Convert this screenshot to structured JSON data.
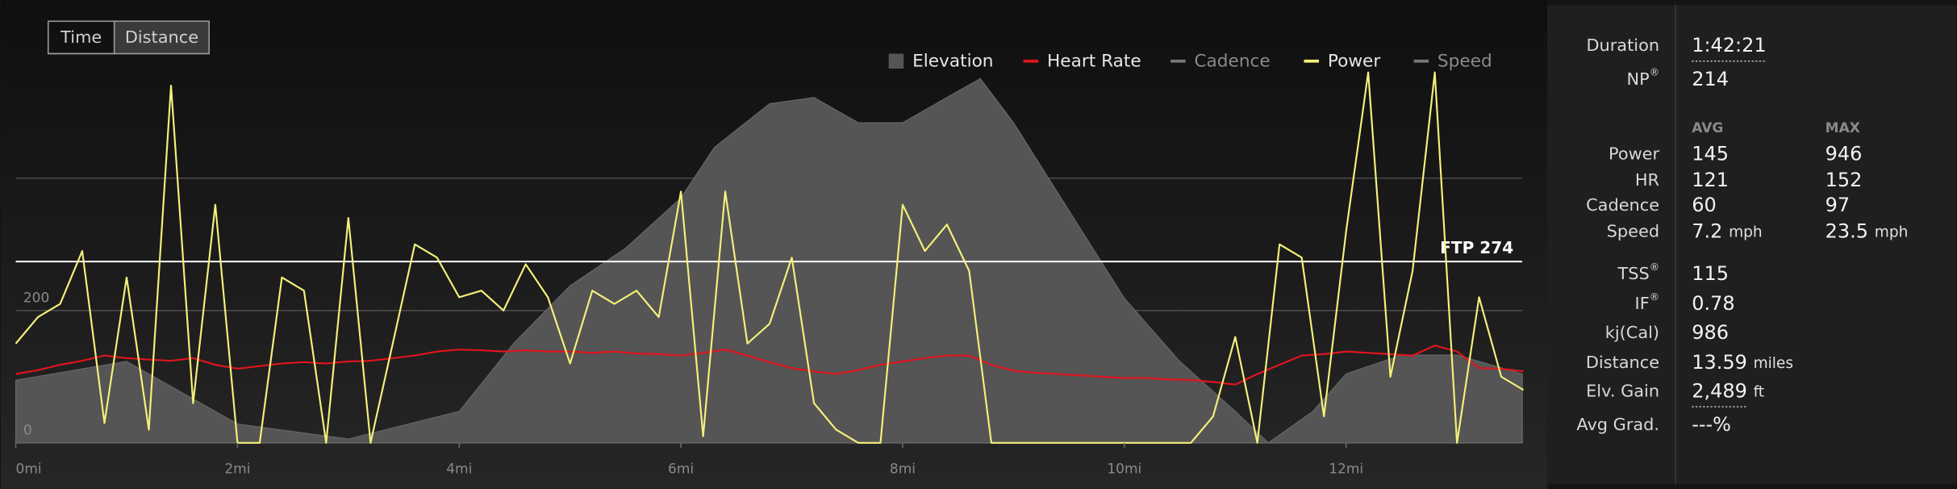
{
  "toggle": {
    "options": [
      "Time",
      "Distance"
    ],
    "selected_index": 1
  },
  "chart_data": {
    "type": "line",
    "x": [
      0,
      0.2,
      0.4,
      0.6,
      0.8,
      1.0,
      1.2,
      1.4,
      1.6,
      1.8,
      2.0,
      2.2,
      2.4,
      2.6,
      2.8,
      3.0,
      3.2,
      3.4,
      3.6,
      3.8,
      4.0,
      4.2,
      4.4,
      4.6,
      4.8,
      5.0,
      5.2,
      5.4,
      5.6,
      5.8,
      6.0,
      6.2,
      6.4,
      6.6,
      6.8,
      7.0,
      7.2,
      7.4,
      7.6,
      7.8,
      8.0,
      8.2,
      8.4,
      8.6,
      8.8,
      9.0,
      9.2,
      9.4,
      9.6,
      9.8,
      10.0,
      10.2,
      10.4,
      10.6,
      10.8,
      11.0,
      11.2,
      11.4,
      11.6,
      11.8,
      12.0,
      12.2,
      12.4,
      12.6,
      12.8,
      13.0,
      13.2,
      13.4,
      13.6
    ],
    "series": [
      {
        "name": "Elevation",
        "color": "#555555",
        "marker": "square",
        "style": "area",
        "axis": "y2",
        "active": true,
        "x": [
          0,
          1,
          2,
          3,
          4,
          4.5,
          5,
          5.5,
          6,
          6.3,
          6.8,
          7.2,
          7.6,
          8,
          8.3,
          8.7,
          9,
          9.5,
          10,
          10.5,
          11,
          11.3,
          11.7,
          12,
          12.5,
          13,
          13.59
        ],
        "values": [
          169,
          220,
          51,
          10,
          85,
          271,
          424,
          525,
          661,
          797,
          915,
          932,
          864,
          864,
          915,
          983,
          864,
          627,
          390,
          220,
          85,
          0,
          85,
          186,
          237,
          237,
          186
        ]
      },
      {
        "name": "Heart Rate",
        "color": "#e0141e",
        "marker": "line",
        "active": true,
        "values": [
          104,
          110,
          118,
          124,
          132,
          128,
          126,
          124,
          128,
          118,
          112,
          116,
          120,
          122,
          120,
          123,
          124,
          128,
          132,
          138,
          141,
          140,
          138,
          140,
          138,
          138,
          136,
          138,
          135,
          134,
          132,
          136,
          141,
          132,
          122,
          113,
          108,
          104,
          110,
          118,
          123,
          128,
          132,
          132,
          118,
          109,
          106,
          104,
          102,
          100,
          98,
          98,
          96,
          95,
          92,
          88,
          104,
          118,
          132,
          134,
          138,
          136,
          134,
          132,
          147,
          138,
          113,
          112,
          108
        ]
      },
      {
        "name": "Cadence",
        "color": "#777777",
        "marker": "line",
        "active": false
      },
      {
        "name": "Power",
        "color": "#f5f07a",
        "marker": "line",
        "active": true,
        "values": [
          150,
          190,
          210,
          290,
          30,
          250,
          20,
          540,
          60,
          360,
          0,
          0,
          250,
          230,
          0,
          340,
          0,
          150,
          300,
          280,
          220,
          230,
          200,
          270,
          220,
          120,
          230,
          210,
          230,
          190,
          380,
          10,
          380,
          150,
          180,
          280,
          60,
          20,
          0,
          0,
          360,
          290,
          330,
          260,
          0,
          0,
          0,
          0,
          0,
          0,
          0,
          0,
          0,
          0,
          40,
          160,
          0,
          300,
          280,
          40,
          320,
          560,
          100,
          260,
          560,
          0,
          220,
          100,
          80
        ]
      },
      {
        "name": "Speed",
        "color": "#777777",
        "marker": "line",
        "active": false
      }
    ],
    "xlim": [
      0,
      13.6
    ],
    "xticks": [
      {
        "value": 0,
        "label": "0mi"
      },
      {
        "value": 2,
        "label": "2mi"
      },
      {
        "value": 4,
        "label": "4mi"
      },
      {
        "value": 6,
        "label": "6mi"
      },
      {
        "value": 8,
        "label": "8mi"
      },
      {
        "value": 10,
        "label": "10mi"
      },
      {
        "value": 12,
        "label": "12mi"
      }
    ],
    "ylim": [
      0,
      560
    ],
    "yticks": [
      0,
      200,
      {
        "value": 400,
        "label": null
      }
    ],
    "y2lim": [
      0,
      1000
    ],
    "grid": true,
    "ftp": {
      "value": 274,
      "label": "FTP 274"
    }
  },
  "summary": [
    {
      "label": "Duration",
      "value": "1:42:21",
      "underline": true
    },
    {
      "label": "NP",
      "sup": "®",
      "value": "214"
    }
  ],
  "stats": {
    "headers": [
      "AVG",
      "MAX"
    ],
    "rows": [
      {
        "label": "Power",
        "avg": "145",
        "max": "946"
      },
      {
        "label": "HR",
        "avg": "121",
        "max": "152"
      },
      {
        "label": "Cadence",
        "avg": "60",
        "max": "97"
      },
      {
        "label": "Speed",
        "avg": "7.2",
        "max": "23.5",
        "unit": "mph"
      }
    ]
  },
  "metrics": [
    {
      "label": "TSS",
      "sup": "®",
      "value": "115"
    },
    {
      "label": "IF",
      "sup": "®",
      "value": "0.78"
    },
    {
      "label": "kj(Cal)",
      "value": "986"
    },
    {
      "label": "Distance",
      "value": "13.59",
      "unit": "miles"
    },
    {
      "label": "Elv. Gain",
      "value": "2,489",
      "unit": "ft",
      "underline": true
    },
    {
      "label": "Avg Grad.",
      "value": "---%"
    }
  ]
}
